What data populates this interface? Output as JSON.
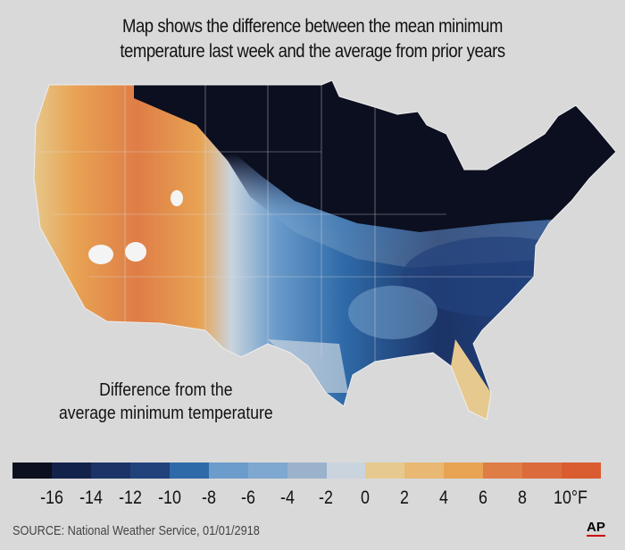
{
  "title": {
    "line1": "Map shows the difference between the mean minimum",
    "line2": "temperature last week and the average from prior years"
  },
  "legend": {
    "title_line1": "Difference from the",
    "title_line2": "average minimum temperature",
    "colors": [
      "#0b0f1f",
      "#13224a",
      "#1b3366",
      "#22427c",
      "#2f6aa8",
      "#6b9ccb",
      "#7ea8cf",
      "#9bb2cc",
      "#c9d4de",
      "#e6c98e",
      "#e9b872",
      "#e8a353",
      "#df7d47",
      "#dc6b3c",
      "#d95d30"
    ],
    "labels": [
      "-16",
      "-14",
      "-12",
      "-10",
      "-8",
      "-6",
      "-4",
      "-2",
      "0",
      "2",
      "4",
      "6",
      "8",
      "10°F"
    ]
  },
  "source": "SOURCE: National Weather Service, 01/01/2918",
  "logo": "AP"
}
